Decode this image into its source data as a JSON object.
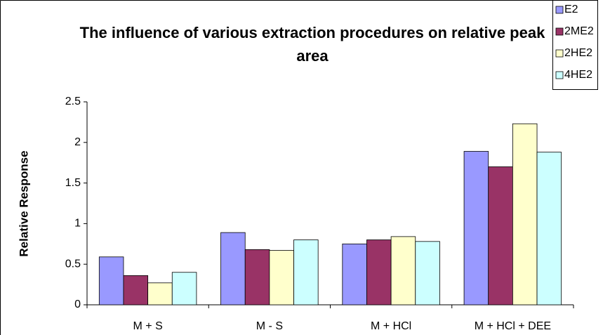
{
  "chart_data": {
    "type": "bar",
    "title": "The influence of various extraction procedures on relative peak area",
    "y_label": "Relative Response",
    "categories": [
      "M + S",
      "M - S",
      "M + HCl",
      "M + HCl + DEE"
    ],
    "series": [
      {
        "name": "E2",
        "color": "#9999ff",
        "values": [
          0.59,
          0.89,
          0.75,
          1.89
        ]
      },
      {
        "name": "2ME2",
        "color": "#993366",
        "values": [
          0.36,
          0.68,
          0.8,
          1.7
        ]
      },
      {
        "name": "2HE2",
        "color": "#ffffcc",
        "values": [
          0.27,
          0.67,
          0.84,
          2.23
        ]
      },
      {
        "name": "4HE2",
        "color": "#ccffff",
        "values": [
          0.4,
          0.8,
          0.78,
          1.88
        ]
      }
    ],
    "ylim": [
      0,
      2.5
    ],
    "yticks": [
      0,
      0.5,
      1,
      1.5,
      2,
      2.5
    ],
    "grid": false,
    "legend": "top-right"
  }
}
